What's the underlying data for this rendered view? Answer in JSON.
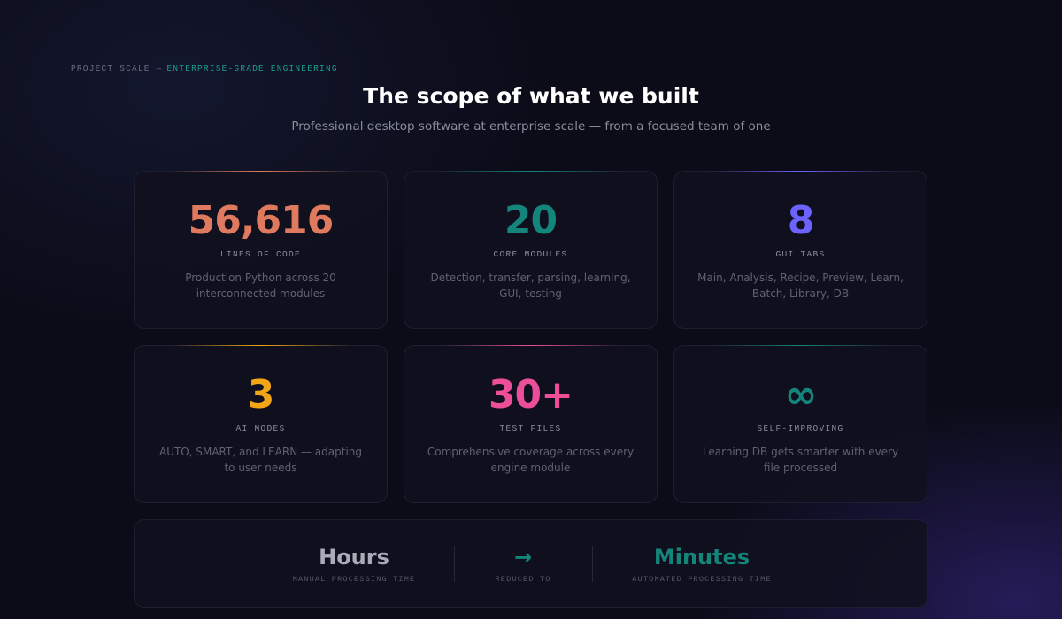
{
  "eyebrow": {
    "prefix": "PROJECT SCALE —",
    "highlight": "ENTERPRISE-GRADE ENGINEERING"
  },
  "header": {
    "title": "The scope of what we built",
    "subtitle": "Professional desktop software at enterprise scale — from a focused team of one"
  },
  "cards": [
    {
      "value": "56,616",
      "label": "LINES OF CODE",
      "description": "Production Python across 20 interconnected modules"
    },
    {
      "value": "20",
      "label": "CORE MODULES",
      "description": "Detection, transfer, parsing, learning, GUI, testing"
    },
    {
      "value": "8",
      "label": "GUI TABS",
      "description": "Main, Analysis, Recipe, Preview, Learn, Batch, Library, DB"
    },
    {
      "value": "3",
      "label": "AI MODES",
      "description": "AUTO, SMART, and LEARN — adapting to user needs"
    },
    {
      "value": "30+",
      "label": "TEST FILES",
      "description": "Comprehensive coverage across every engine module"
    },
    {
      "value": "∞",
      "label": "SELF-IMPROVING",
      "description": "Learning DB gets smarter with every file processed"
    }
  ],
  "comparison": [
    {
      "value": "Hours",
      "label": "MANUAL PROCESSING TIME"
    },
    {
      "value": "→",
      "label": "REDUCED TO"
    },
    {
      "value": "Minutes",
      "label": "AUTOMATED PROCESSING TIME"
    }
  ]
}
